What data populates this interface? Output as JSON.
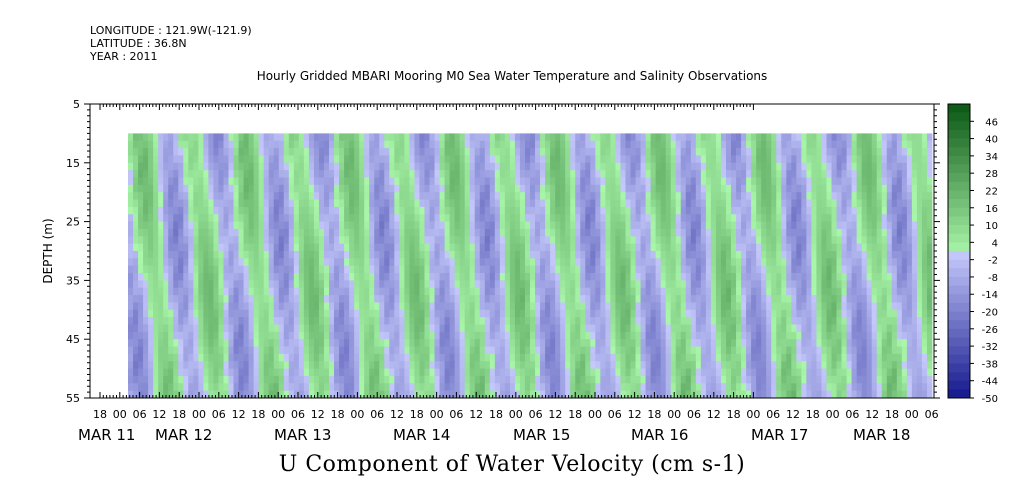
{
  "header": {
    "longitude": "LONGITUDE : 121.9W(-121.9)",
    "latitude": "LATITUDE : 36.8N",
    "year": "YEAR : 2011"
  },
  "chart_data": {
    "type": "heatmap",
    "title": "Hourly Gridded MBARI Mooring M0 Sea Water Temperature and Salinity Observations",
    "xlabel": "U Component of Water Velocity (cm s-1)",
    "ylabel": "DEPTH (m)",
    "y_range": [
      5,
      55
    ],
    "y_inverted": true,
    "y_ticks": [
      5,
      15,
      25,
      35,
      45,
      55
    ],
    "data_depth_range": [
      10,
      55
    ],
    "x_range_hours": [
      -12,
      71
    ],
    "x_hour_ticks": [
      "18",
      "00",
      "06",
      "12",
      "18",
      "00",
      "06",
      "12",
      "18",
      "00",
      "06",
      "12",
      "18",
      "00",
      "06",
      "12",
      "18",
      "00",
      "06",
      "12",
      "18",
      "00",
      "06",
      "12",
      "18",
      "00",
      "06",
      "12",
      "18",
      "00",
      "06",
      "12",
      "18",
      "00",
      "06",
      "12",
      "18",
      "00",
      "06",
      "12",
      "18",
      "00",
      "06",
      "12"
    ],
    "x_day_labels": [
      "MAR 11",
      "MAR 12",
      "MAR 13",
      "MAR 14",
      "MAR 15",
      "MAR 16",
      "MAR 17",
      "MAR 18"
    ],
    "colorbar": {
      "min": -50,
      "max": 52,
      "step": 3,
      "tick_labels": [
        "46",
        "40",
        "34",
        "28",
        "22",
        "16",
        "10",
        "4",
        "-2",
        "-8",
        "-14",
        "-20",
        "-26",
        "-32",
        "-38",
        "-44",
        "-50"
      ]
    },
    "field_pattern": {
      "description_values_cm_s": "tidal banding between about -20 and +20",
      "band_centers_day": [
        0.45,
        1.55,
        2.55,
        3.75,
        4.8,
        5.8,
        6.9,
        7.75
      ],
      "band_signs": [
        1,
        1,
        1,
        1,
        1,
        1,
        1,
        1
      ]
    }
  }
}
